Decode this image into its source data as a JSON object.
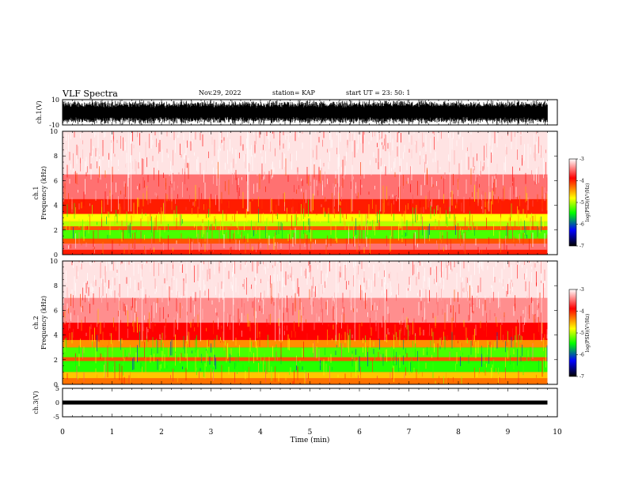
{
  "header": {
    "title": "VLF Spectra",
    "date": "Nov.29, 2022",
    "station": "station= KAP",
    "start": "start UT =  23: 50: 1"
  },
  "chart_data": [
    {
      "type": "line",
      "panel": "waveform-ch1",
      "ylabel": "ch.1(V)",
      "ylim": [
        -10,
        10
      ],
      "yticks": [
        "10",
        "-10"
      ],
      "xlim": [
        0,
        10
      ],
      "note_values": "dense noise-like waveform roughly spanning -10 to 10 V over 0–9.8 min"
    },
    {
      "type": "heatmap",
      "panel": "spectrogram-ch1",
      "ylabel": "ch.1\nFrequency (kHz)",
      "ylabel_top": "ch.1",
      "ylabel_bottom": "Frequency (kHz)",
      "ylim": [
        0,
        10
      ],
      "yticks": [
        "0",
        "2",
        "4",
        "6",
        "8",
        "10"
      ],
      "xlim": [
        0,
        10
      ],
      "data_extent_min": 9.8,
      "bands_kHz": [
        {
          "from": 0.0,
          "to": 0.4,
          "level": -4.0
        },
        {
          "from": 0.4,
          "to": 0.9,
          "level": -3.5
        },
        {
          "from": 0.9,
          "to": 1.3,
          "level": -4.2
        },
        {
          "from": 1.3,
          "to": 2.0,
          "level": -5.3
        },
        {
          "from": 2.0,
          "to": 2.3,
          "level": -4.2
        },
        {
          "from": 2.3,
          "to": 2.7,
          "level": -5.0
        },
        {
          "from": 2.7,
          "to": 3.3,
          "level": -4.8
        },
        {
          "from": 3.3,
          "to": 4.5,
          "level": -4.0
        },
        {
          "from": 4.5,
          "to": 6.5,
          "level": -3.5
        },
        {
          "from": 6.5,
          "to": 10.0,
          "level": -3.1
        }
      ]
    },
    {
      "type": "heatmap",
      "panel": "spectrogram-ch2",
      "ylabel_top": "ch.2",
      "ylabel_bottom": "Frequency (kHz)",
      "ylim": [
        0,
        10
      ],
      "yticks": [
        "0",
        "2",
        "4",
        "6",
        "8",
        "10"
      ],
      "xlim": [
        0,
        10
      ],
      "data_extent_min": 9.8,
      "bands_kHz": [
        {
          "from": 0.0,
          "to": 0.5,
          "level": -4.3
        },
        {
          "from": 0.5,
          "to": 1.0,
          "level": -4.6
        },
        {
          "from": 1.0,
          "to": 1.9,
          "level": -5.4
        },
        {
          "from": 1.9,
          "to": 2.2,
          "level": -4.2
        },
        {
          "from": 2.2,
          "to": 3.0,
          "level": -5.3
        },
        {
          "from": 3.0,
          "to": 3.6,
          "level": -4.4
        },
        {
          "from": 3.6,
          "to": 5.0,
          "level": -3.9
        },
        {
          "from": 5.0,
          "to": 7.0,
          "level": -3.4
        },
        {
          "from": 7.0,
          "to": 10.0,
          "level": -3.1
        }
      ]
    },
    {
      "type": "line",
      "panel": "waveform-ch3",
      "ylabel": "ch.3(V)",
      "ylim": [
        -5,
        5
      ],
      "yticks": [
        "5",
        "0",
        "-5"
      ],
      "xlim": [
        0,
        10
      ],
      "xlabel": "Time (min)",
      "xticks": [
        "0",
        "1",
        "2",
        "3",
        "4",
        "5",
        "6",
        "7",
        "8",
        "9",
        "10"
      ],
      "note_values": "flat trace near 0 V with small noise over 0–9.8 min"
    }
  ],
  "colorbar": {
    "label": "log(PSD)(V²/Hz)",
    "ticks": [
      "-3",
      "-4",
      "-5",
      "-6",
      "-7"
    ],
    "range": [
      -7,
      -3
    ],
    "colors": [
      "#ffffff",
      "#ff0000",
      "#ffff00",
      "#00ff00",
      "#0000ff",
      "#000000"
    ]
  }
}
